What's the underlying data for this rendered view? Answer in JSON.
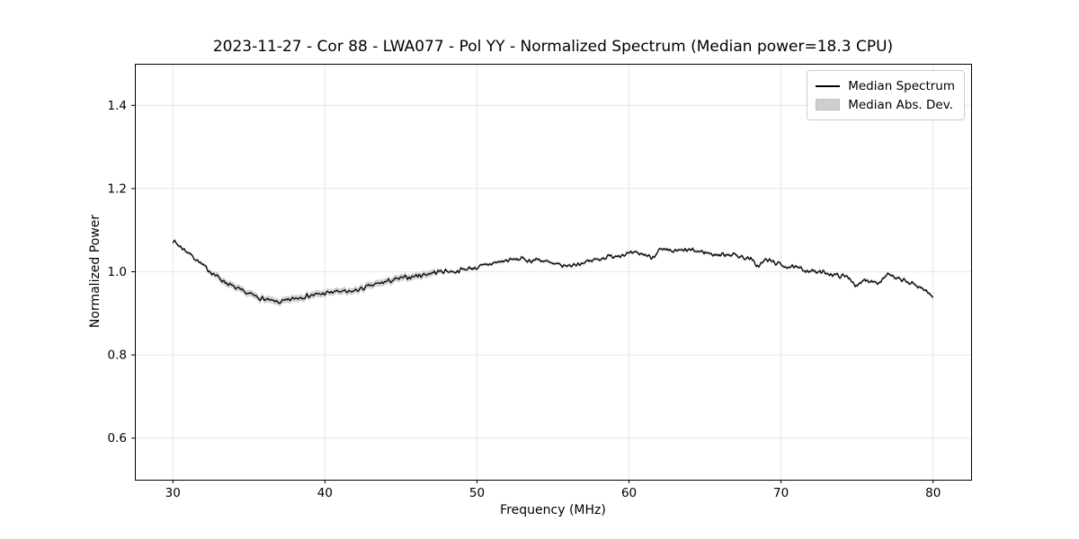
{
  "chart_data": {
    "type": "line",
    "title": "2023-11-27 - Cor 88 - LWA077 - Pol YY - Normalized Spectrum (Median power=18.3 CPU)",
    "xlabel": "Frequency (MHz)",
    "ylabel": "Normalized Power",
    "xlim": [
      27.5,
      82.5
    ],
    "ylim": [
      0.5,
      1.5
    ],
    "xticks": [
      30,
      40,
      50,
      60,
      70,
      80
    ],
    "yticks": [
      0.6,
      0.8,
      1.0,
      1.2,
      1.4
    ],
    "grid": true,
    "grid_color": "#e6e6e6",
    "line_color": "#000000",
    "band_color": "#cfcfcf",
    "noise_amplitude": 0.0042,
    "legend": {
      "position": "upper right",
      "entries": [
        {
          "label": "Median Spectrum",
          "type": "line",
          "color": "#000000"
        },
        {
          "label": "Median Abs. Dev.",
          "type": "patch",
          "color": "#cfcfcf"
        }
      ]
    },
    "series": [
      {
        "name": "Median Spectrum",
        "x_start": 30.0,
        "x_step": 0.5,
        "x_end": 80.0,
        "y": [
          1.075,
          1.06,
          1.047,
          1.031,
          1.014,
          1.0,
          0.986,
          0.974,
          0.963,
          0.954,
          0.947,
          0.94,
          0.934,
          0.929,
          0.927,
          0.93,
          0.936,
          0.94,
          0.943,
          0.945,
          0.948,
          0.951,
          0.953,
          0.95,
          0.955,
          0.96,
          0.966,
          0.971,
          0.976,
          0.98,
          0.984,
          0.987,
          0.99,
          0.993,
          0.997,
          1.0,
          1.002,
          1.0,
          1.005,
          1.008,
          1.01,
          1.015,
          1.02,
          1.024,
          1.027,
          1.03,
          1.031,
          1.026,
          1.03,
          1.025,
          1.018,
          1.015,
          1.014,
          1.018,
          1.022,
          1.026,
          1.031,
          1.035,
          1.038,
          1.041,
          1.043,
          1.044,
          1.042,
          1.034,
          1.052,
          1.05,
          1.049,
          1.051,
          1.052,
          1.049,
          1.047,
          1.042,
          1.04,
          1.043,
          1.04,
          1.035,
          1.03,
          1.013,
          1.029,
          1.024,
          1.016,
          1.012,
          1.009,
          1.005,
          1.002,
          0.998,
          0.998,
          0.992,
          0.99,
          0.986,
          0.963,
          0.981,
          0.978,
          0.975,
          0.996,
          0.983,
          0.98,
          0.972,
          0.966,
          0.955,
          0.938
        ]
      },
      {
        "name": "Median Abs. Dev.",
        "band_halfwidth_default": 0.004,
        "band_halfwidth_enhanced": 0.008,
        "band_enhanced_range_mhz": [
          33,
          47
        ]
      }
    ]
  }
}
